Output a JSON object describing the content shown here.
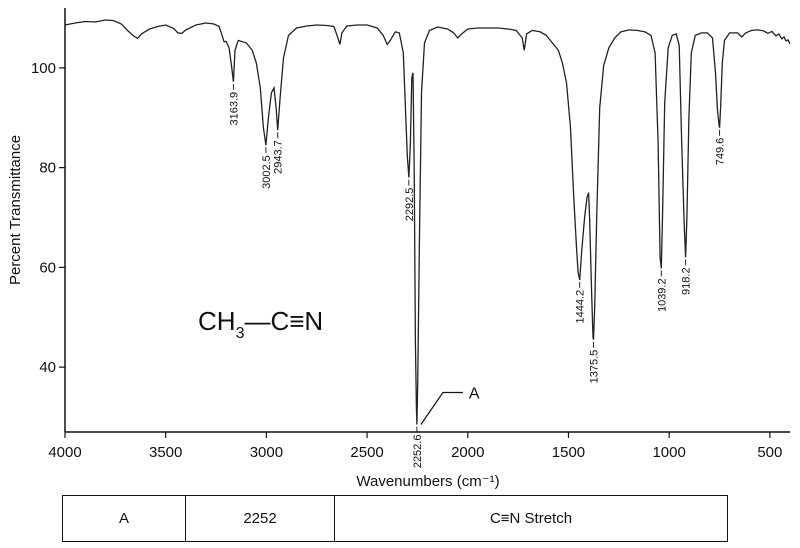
{
  "chart_data": {
    "type": "line",
    "title": "",
    "xlabel": "Wavenumbers (cm⁻¹)",
    "ylabel": "Percent Transmittance",
    "xlim": [
      4000,
      400
    ],
    "ylim": [
      27,
      112
    ],
    "x_ticks": [
      "4000",
      "3500",
      "3000",
      "2500",
      "2000",
      "1500",
      "1000",
      "500"
    ],
    "x_tick_values": [
      4000,
      3500,
      3000,
      2500,
      2000,
      1500,
      1000,
      500
    ],
    "y_ticks": [
      "40",
      "60",
      "80",
      "100"
    ],
    "y_tick_values": [
      40,
      60,
      80,
      100
    ],
    "grid": false,
    "series": [
      {
        "color": "#222222",
        "points": [
          [
            4000,
            108.6
          ],
          [
            3950,
            109.0
          ],
          [
            3900,
            109.3
          ],
          [
            3850,
            109.2
          ],
          [
            3800,
            109.6
          ],
          [
            3760,
            109.5
          ],
          [
            3720,
            108.8
          ],
          [
            3690,
            107.5
          ],
          [
            3660,
            106.4
          ],
          [
            3640,
            105.9
          ],
          [
            3620,
            106.8
          ],
          [
            3580,
            107.8
          ],
          [
            3540,
            108.3
          ],
          [
            3500,
            108.6
          ],
          [
            3460,
            107.9
          ],
          [
            3440,
            107.0
          ],
          [
            3420,
            106.9
          ],
          [
            3400,
            107.6
          ],
          [
            3350,
            108.6
          ],
          [
            3300,
            109.0
          ],
          [
            3260,
            108.8
          ],
          [
            3235,
            108.3
          ],
          [
            3220,
            106.5
          ],
          [
            3210,
            105.2
          ],
          [
            3200,
            105.3
          ],
          [
            3185,
            104.0
          ],
          [
            3172,
            100.0
          ],
          [
            3164,
            97.2
          ],
          [
            3156,
            103.5
          ],
          [
            3140,
            105.5
          ],
          [
            3100,
            105.0
          ],
          [
            3070,
            103.5
          ],
          [
            3050,
            101.0
          ],
          [
            3030,
            96.0
          ],
          [
            3015,
            88.0
          ],
          [
            3002.5,
            84.5
          ],
          [
            2990,
            90.0
          ],
          [
            2975,
            95.0
          ],
          [
            2962,
            96.0
          ],
          [
            2952,
            92.0
          ],
          [
            2943.7,
            87.5
          ],
          [
            2932,
            94.0
          ],
          [
            2915,
            102.0
          ],
          [
            2890,
            106.5
          ],
          [
            2850,
            108.0
          ],
          [
            2800,
            108.4
          ],
          [
            2750,
            108.6
          ],
          [
            2700,
            108.5
          ],
          [
            2665,
            108.3
          ],
          [
            2645,
            106.0
          ],
          [
            2635,
            104.7
          ],
          [
            2625,
            107.0
          ],
          [
            2600,
            108.4
          ],
          [
            2550,
            108.6
          ],
          [
            2500,
            108.6
          ],
          [
            2450,
            108.0
          ],
          [
            2420,
            106.5
          ],
          [
            2400,
            104.7
          ],
          [
            2385,
            105.5
          ],
          [
            2360,
            107.2
          ],
          [
            2340,
            107.0
          ],
          [
            2320,
            103.0
          ],
          [
            2308,
            90.0
          ],
          [
            2300,
            82.0
          ],
          [
            2292.5,
            78.0
          ],
          [
            2285,
            85.0
          ],
          [
            2278,
            98.0
          ],
          [
            2272,
            99.0
          ],
          [
            2266,
            80.0
          ],
          [
            2260,
            45.0
          ],
          [
            2255,
            32.0
          ],
          [
            2252.6,
            28.5
          ],
          [
            2248,
            38.0
          ],
          [
            2240,
            65.0
          ],
          [
            2230,
            95.0
          ],
          [
            2215,
            105.0
          ],
          [
            2190,
            107.5
          ],
          [
            2150,
            108.2
          ],
          [
            2100,
            107.8
          ],
          [
            2070,
            107.0
          ],
          [
            2050,
            106.0
          ],
          [
            2030,
            106.8
          ],
          [
            2000,
            107.8
          ],
          [
            1950,
            108.0
          ],
          [
            1900,
            108.0
          ],
          [
            1850,
            108.0
          ],
          [
            1800,
            107.8
          ],
          [
            1760,
            107.5
          ],
          [
            1730,
            106.0
          ],
          [
            1720,
            103.5
          ],
          [
            1708,
            106.8
          ],
          [
            1680,
            107.5
          ],
          [
            1640,
            107.2
          ],
          [
            1610,
            106.5
          ],
          [
            1590,
            105.5
          ],
          [
            1570,
            104.5
          ],
          [
            1550,
            103.5
          ],
          [
            1530,
            101.0
          ],
          [
            1510,
            97.0
          ],
          [
            1490,
            88.0
          ],
          [
            1475,
            75.0
          ],
          [
            1460,
            64.0
          ],
          [
            1452,
            59.0
          ],
          [
            1444.2,
            57.5
          ],
          [
            1435,
            63.0
          ],
          [
            1420,
            70.0
          ],
          [
            1408,
            74.0
          ],
          [
            1400,
            75.0
          ],
          [
            1395,
            70.0
          ],
          [
            1385,
            55.0
          ],
          [
            1378,
            46.0
          ],
          [
            1375.5,
            45.5
          ],
          [
            1370,
            52.0
          ],
          [
            1360,
            70.0
          ],
          [
            1345,
            92.0
          ],
          [
            1325,
            100.5
          ],
          [
            1300,
            104.0
          ],
          [
            1270,
            106.0
          ],
          [
            1240,
            107.2
          ],
          [
            1200,
            107.6
          ],
          [
            1160,
            107.5
          ],
          [
            1120,
            107.2
          ],
          [
            1090,
            106.5
          ],
          [
            1070,
            103.0
          ],
          [
            1055,
            85.0
          ],
          [
            1045,
            62.0
          ],
          [
            1039.2,
            59.8
          ],
          [
            1033,
            70.0
          ],
          [
            1022,
            93.0
          ],
          [
            1005,
            104.0
          ],
          [
            985,
            106.5
          ],
          [
            965,
            106.8
          ],
          [
            950,
            104.5
          ],
          [
            938,
            85.0
          ],
          [
            925,
            68.0
          ],
          [
            918.2,
            62.0
          ],
          [
            912,
            70.0
          ],
          [
            902,
            90.0
          ],
          [
            890,
            103.0
          ],
          [
            870,
            106.5
          ],
          [
            840,
            107.0
          ],
          [
            810,
            107.0
          ],
          [
            785,
            106.0
          ],
          [
            770,
            99.0
          ],
          [
            760,
            91.5
          ],
          [
            752,
            88.5
          ],
          [
            749.6,
            88.0
          ],
          [
            744,
            92.5
          ],
          [
            736,
            101.0
          ],
          [
            725,
            105.5
          ],
          [
            700,
            107.0
          ],
          [
            660,
            107.0
          ],
          [
            640,
            106.2
          ],
          [
            620,
            107.0
          ],
          [
            590,
            107.5
          ],
          [
            560,
            107.6
          ],
          [
            530,
            107.4
          ],
          [
            510,
            106.9
          ],
          [
            490,
            107.3
          ],
          [
            470,
            106.4
          ],
          [
            455,
            106.8
          ],
          [
            440,
            105.8
          ],
          [
            430,
            106.2
          ],
          [
            420,
            105.4
          ],
          [
            410,
            105.6
          ],
          [
            400,
            104.8
          ]
        ]
      }
    ],
    "peaks": [
      {
        "x": 3163.9,
        "y": 97.2,
        "label": "3163.9"
      },
      {
        "x": 3002.5,
        "y": 84.5,
        "label": "3002.5"
      },
      {
        "x": 2943.7,
        "y": 87.5,
        "label": "2943.7"
      },
      {
        "x": 2292.5,
        "y": 78.0,
        "label": "2292.5"
      },
      {
        "x": 2252.6,
        "y": 28.5,
        "label": "2252.6"
      },
      {
        "x": 1444.2,
        "y": 57.5,
        "label": "1444.2"
      },
      {
        "x": 1375.5,
        "y": 45.5,
        "label": "1375.5"
      },
      {
        "x": 1039.2,
        "y": 59.8,
        "label": "1039.2"
      },
      {
        "x": 918.2,
        "y": 62.0,
        "label": "918.2"
      },
      {
        "x": 749.6,
        "y": 88.0,
        "label": "749.6"
      }
    ],
    "annotations": {
      "callout": {
        "label": "A",
        "x": 2252.6,
        "y": 28.5
      },
      "formula": {
        "part1": "CH",
        "subscript": "3",
        "part2": "—C≡N"
      }
    }
  },
  "table": {
    "rows": [
      [
        "A",
        "2252",
        "C≡N Stretch"
      ]
    ]
  }
}
